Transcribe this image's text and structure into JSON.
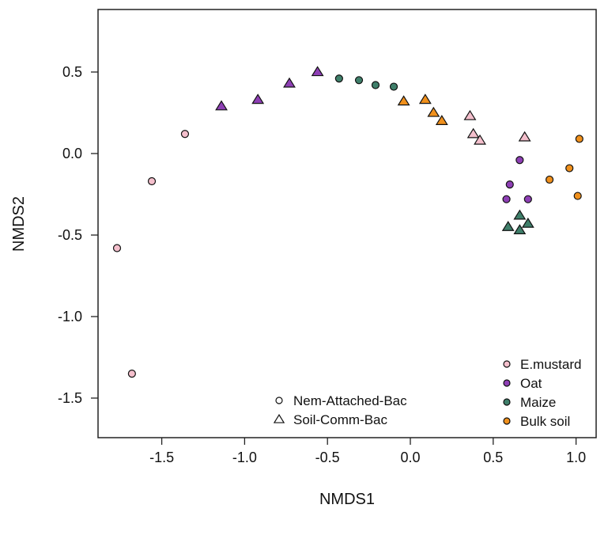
{
  "chart_data": {
    "type": "scatter",
    "xlabel": "NMDS1",
    "ylabel": "NMDS2",
    "xlim": [
      -1.95,
      1.12
    ],
    "ylim": [
      -1.75,
      0.88
    ],
    "xticks": [
      -1.5,
      -1.0,
      -0.5,
      0.0,
      0.5,
      1.0
    ],
    "xtick_labels": [
      "-1.5",
      "-1.0",
      "-0.5",
      "0.0",
      "0.5",
      "1.0"
    ],
    "yticks": [
      0.5,
      0.0,
      -0.5,
      -1.0,
      -1.5
    ],
    "ytick_labels": [
      "0.5",
      "0.0",
      "-0.5",
      "-1.0",
      "-1.5"
    ],
    "grid": false,
    "colors": {
      "E.mustard": "#f4bfcc",
      "Oat": "#8e3fb5",
      "Maize": "#3f7f6a",
      "Bulk soil": "#f0901c"
    },
    "shape_legend": {
      "placement": "bottom-center",
      "entries": [
        {
          "label": "Nem-Attached-Bac",
          "shape": "circle"
        },
        {
          "label": "Soil-Comm-Bac",
          "shape": "triangle"
        }
      ]
    },
    "color_legend": {
      "placement": "bottom-right",
      "entries": [
        "E.mustard",
        "Oat",
        "Maize",
        "Bulk soil"
      ]
    },
    "series": [
      {
        "name": "E.mustard",
        "shape": "circle",
        "points": [
          [
            -1.77,
            -0.58
          ],
          [
            -1.68,
            -1.35
          ],
          [
            -1.56,
            -0.17
          ],
          [
            -1.36,
            0.12
          ]
        ]
      },
      {
        "name": "Oat",
        "shape": "triangle",
        "points": [
          [
            -1.14,
            0.29
          ],
          [
            -0.92,
            0.33
          ],
          [
            -0.73,
            0.43
          ],
          [
            -0.56,
            0.5
          ]
        ]
      },
      {
        "name": "Maize",
        "shape": "circle",
        "points": [
          [
            -0.43,
            0.46
          ],
          [
            -0.31,
            0.45
          ],
          [
            -0.21,
            0.42
          ],
          [
            -0.1,
            0.41
          ]
        ]
      },
      {
        "name": "Bulk soil",
        "shape": "triangle",
        "points": [
          [
            -0.04,
            0.32
          ],
          [
            0.09,
            0.33
          ],
          [
            0.14,
            0.25
          ],
          [
            0.19,
            0.2
          ]
        ]
      },
      {
        "name": "E.mustard",
        "shape": "triangle",
        "points": [
          [
            0.36,
            0.23
          ],
          [
            0.38,
            0.12
          ],
          [
            0.42,
            0.08
          ],
          [
            0.69,
            0.1
          ]
        ]
      },
      {
        "name": "Oat",
        "shape": "circle",
        "points": [
          [
            0.66,
            -0.04
          ],
          [
            0.6,
            -0.19
          ],
          [
            0.58,
            -0.28
          ],
          [
            0.71,
            -0.28
          ]
        ]
      },
      {
        "name": "Maize",
        "shape": "triangle",
        "points": [
          [
            0.66,
            -0.38
          ],
          [
            0.59,
            -0.45
          ],
          [
            0.71,
            -0.43
          ],
          [
            0.66,
            -0.47
          ]
        ]
      },
      {
        "name": "Bulk soil",
        "shape": "circle",
        "points": [
          [
            1.02,
            0.09
          ],
          [
            0.96,
            -0.09
          ],
          [
            0.84,
            -0.16
          ],
          [
            1.01,
            -0.26
          ]
        ]
      }
    ]
  }
}
